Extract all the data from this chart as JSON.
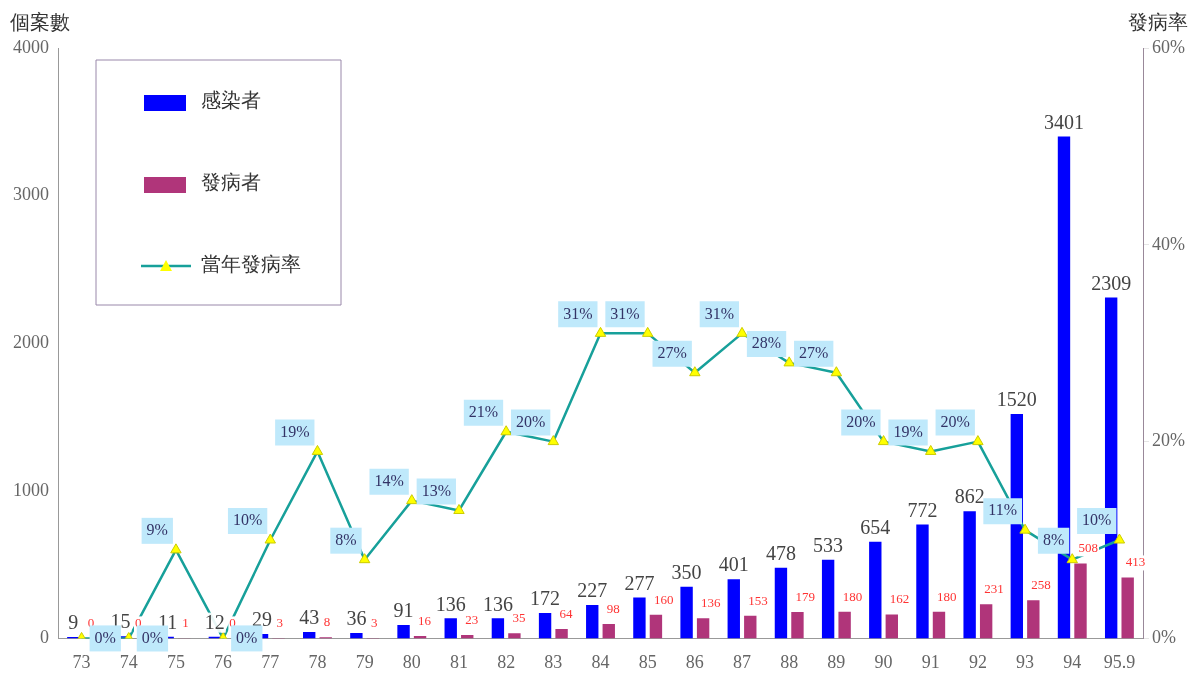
{
  "chart_data": {
    "type": "bar",
    "categories": [
      "73",
      "74",
      "75",
      "76",
      "77",
      "78",
      "79",
      "80",
      "81",
      "82",
      "83",
      "84",
      "85",
      "86",
      "87",
      "88",
      "89",
      "90",
      "91",
      "92",
      "93",
      "94",
      "95.9"
    ],
    "series": [
      {
        "name": "感染者",
        "color": "#0000ff",
        "values": [
          9,
          15,
          11,
          12,
          29,
          43,
          36,
          91,
          136,
          136,
          172,
          227,
          277,
          350,
          401,
          478,
          533,
          654,
          772,
          862,
          1520,
          3401,
          2309
        ]
      },
      {
        "name": "發病者",
        "color": "#b0357a",
        "values": [
          0,
          0,
          1,
          0,
          3,
          8,
          3,
          16,
          23,
          35,
          64,
          98,
          160,
          136,
          153,
          179,
          180,
          162,
          180,
          231,
          258,
          508,
          413
        ]
      },
      {
        "name": "當年發病率",
        "type": "line",
        "axis": "y2",
        "color": "#17a09a",
        "values": [
          0,
          0,
          9,
          0,
          10,
          19,
          8,
          14,
          13,
          21,
          20,
          31,
          31,
          27,
          31,
          28,
          27,
          20,
          19,
          20,
          11,
          8,
          10
        ],
        "value_labels": [
          "0%",
          "0%",
          "9%",
          "0%",
          "10%",
          "19%",
          "8%",
          "14%",
          "13%",
          "21%",
          "20%",
          "31%",
          "31%",
          "27%",
          "31%",
          "28%",
          "27%",
          "20%",
          "19%",
          "20%",
          "11%",
          "8%",
          "10%"
        ]
      }
    ],
    "ylabel": "個案數",
    "y2label": "發病率",
    "ylim": [
      0,
      4000
    ],
    "yticks": [
      0,
      1000,
      2000,
      3000,
      4000
    ],
    "y2lim": [
      0,
      60
    ],
    "y2ticks": [
      {
        "value": 0,
        "label": "0%"
      },
      {
        "value": 20,
        "label": "20%"
      },
      {
        "value": 40,
        "label": "40%"
      },
      {
        "value": 60,
        "label": "60%"
      }
    ],
    "data_labels": true,
    "grid": false,
    "legend": "top left",
    "marker": "triangle",
    "line_style": "solid"
  }
}
